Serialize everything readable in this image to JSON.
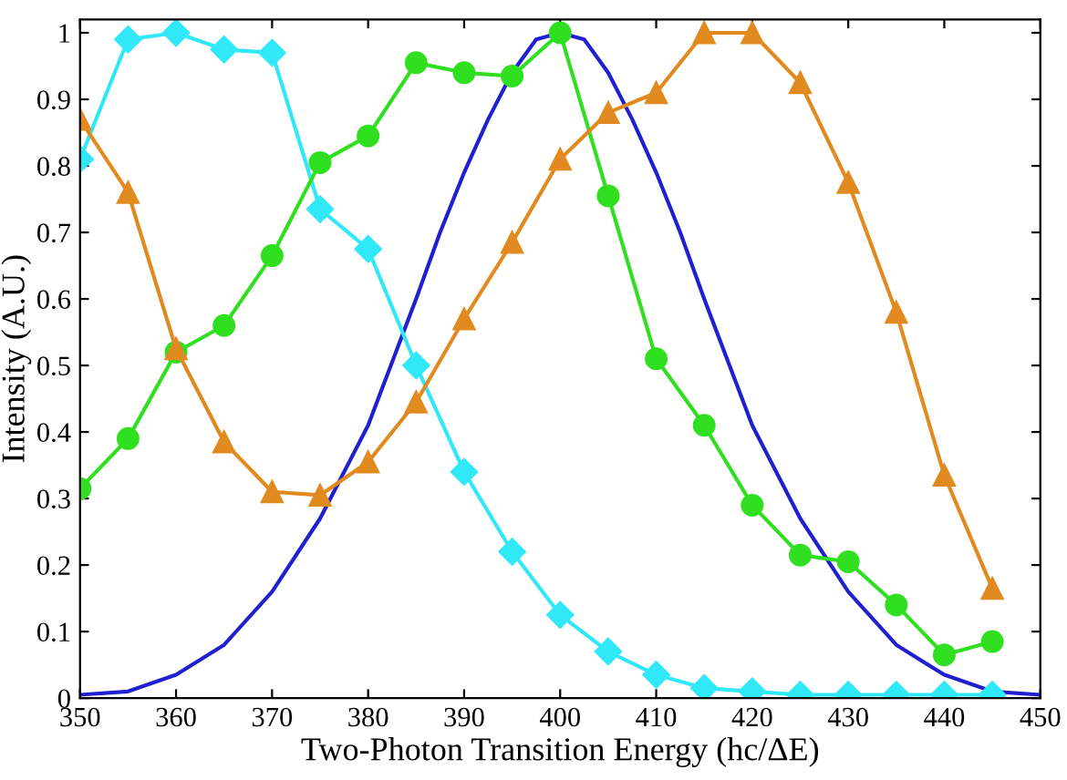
{
  "chart_data": {
    "type": "line",
    "xlabel": "Two-Photon Transition Energy (hc/ΔE)",
    "ylabel": "Intensity (A.U.)",
    "xlim": [
      350,
      450
    ],
    "xticks": [
      350,
      360,
      370,
      380,
      390,
      400,
      410,
      420,
      430,
      440,
      450
    ],
    "ylim": [
      0,
      1.02
    ],
    "yticks": [
      0,
      0.1,
      0.2,
      0.3,
      0.4,
      0.5,
      0.6,
      0.7,
      0.8,
      0.9,
      1
    ],
    "grid": false,
    "legend": false,
    "series": [
      {
        "color": "#2020d0",
        "marker": "none",
        "x": [
          350,
          355,
          360,
          365,
          370,
          375,
          380,
          385,
          387.5,
          390,
          392.5,
          395,
          397.5,
          400,
          402.5,
          405,
          407.5,
          410,
          412.5,
          415,
          420,
          425,
          430,
          435,
          440,
          445,
          450
        ],
        "values": [
          0.005,
          0.01,
          0.035,
          0.08,
          0.16,
          0.27,
          0.41,
          0.6,
          0.7,
          0.79,
          0.87,
          0.94,
          0.99,
          1.0,
          0.99,
          0.94,
          0.87,
          0.79,
          0.7,
          0.6,
          0.41,
          0.27,
          0.16,
          0.08,
          0.035,
          0.01,
          0.005
        ]
      },
      {
        "color": "#30e8f8",
        "marker": "diamond",
        "x": [
          350,
          355,
          360,
          365,
          370,
          375,
          380,
          385,
          390,
          395,
          400,
          405,
          410,
          415,
          420,
          425,
          430,
          435,
          440,
          445
        ],
        "values": [
          0.81,
          0.99,
          1.0,
          0.975,
          0.97,
          0.735,
          0.675,
          0.5,
          0.34,
          0.22,
          0.125,
          0.07,
          0.035,
          0.015,
          0.01,
          0.005,
          0.005,
          0.005,
          0.005,
          0.005
        ]
      },
      {
        "color": "#30e020",
        "marker": "circle",
        "x": [
          350,
          355,
          360,
          365,
          370,
          375,
          380,
          385,
          390,
          395,
          400,
          405,
          410,
          415,
          420,
          425,
          430,
          435,
          440,
          445
        ],
        "values": [
          0.315,
          0.39,
          0.52,
          0.56,
          0.665,
          0.805,
          0.845,
          0.955,
          0.94,
          0.935,
          1.0,
          0.755,
          0.51,
          0.41,
          0.29,
          0.215,
          0.205,
          0.14,
          0.065,
          0.085
        ]
      },
      {
        "color": "#e08a20",
        "marker": "triangle",
        "x": [
          350,
          355,
          360,
          365,
          370,
          375,
          380,
          385,
          390,
          395,
          400,
          405,
          410,
          415,
          420,
          425,
          430,
          435,
          440,
          445
        ],
        "values": [
          0.87,
          0.76,
          0.525,
          0.385,
          0.31,
          0.305,
          0.355,
          0.445,
          0.57,
          0.685,
          0.81,
          0.88,
          0.91,
          1.0,
          1.0,
          0.925,
          0.775,
          0.58,
          0.335,
          0.165
        ]
      }
    ]
  }
}
